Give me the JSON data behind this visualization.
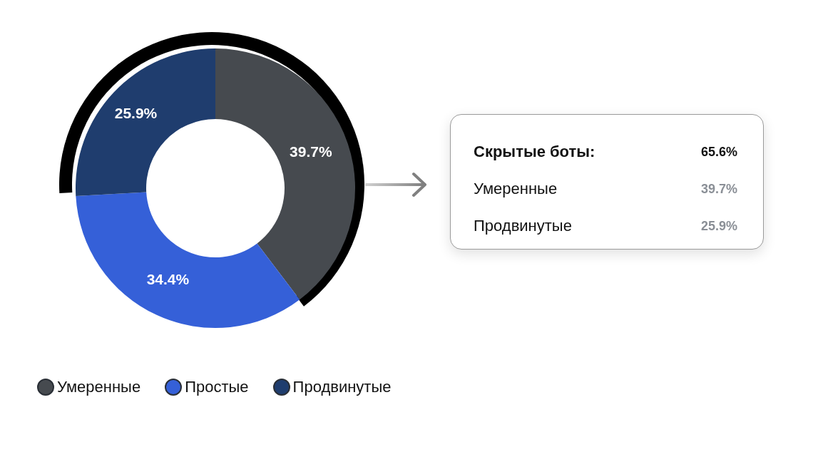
{
  "chart_data": {
    "type": "donut",
    "categories": [
      "Умеренные",
      "Простые",
      "Продвинутые"
    ],
    "values": [
      39.7,
      34.4,
      25.9
    ],
    "colors": [
      "#464a4f",
      "#3560d8",
      "#1f3d6e"
    ],
    "value_labels": [
      "39.7%",
      "34.4%",
      "25.9%"
    ],
    "legend": "bottom left",
    "annotations": [
      "Скрытые боты:",
      "65.6%",
      "Умеренные",
      "39.7%",
      "Продвинутые",
      "25.9%"
    ]
  }
}
